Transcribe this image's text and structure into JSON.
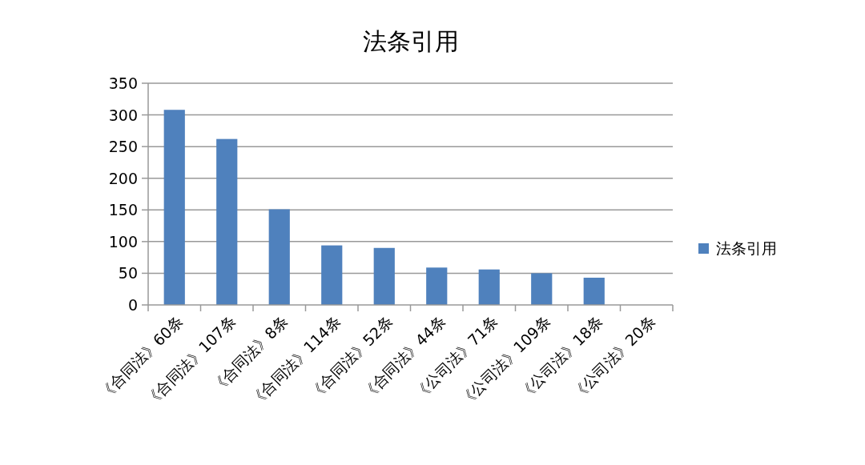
{
  "chart_data": {
    "type": "bar",
    "title": "法条引用",
    "categories": [
      "《合同法》60条",
      "《合同法》107条",
      "《合同法》8条",
      "《合同法》114条",
      "《合同法》52条",
      "《合同法》44条",
      "《公司法》71条",
      "《公司法》109条",
      "《公司法》18条",
      "《公司法》20条"
    ],
    "series": [
      {
        "name": "法条引用",
        "color": "#4f81bd",
        "values": [
          308,
          262,
          151,
          94,
          90,
          59,
          56,
          50,
          43,
          0
        ]
      }
    ],
    "ylim": [
      0,
      350
    ],
    "yticks": [
      0,
      50,
      100,
      150,
      200,
      250,
      300,
      350
    ],
    "grid": "y",
    "legend": "right"
  }
}
